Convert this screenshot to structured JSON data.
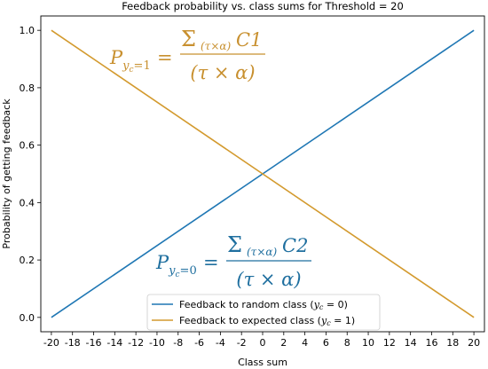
{
  "chart_data": {
    "type": "line",
    "title": "Feedback probability vs. class sums for Threshold = 20",
    "xlabel": "Class sum",
    "ylabel": "Probability of getting feedback",
    "xlim": [
      -21,
      21
    ],
    "ylim": [
      -0.05,
      1.05
    ],
    "x_ticks": [
      -20,
      -18,
      -16,
      -14,
      -12,
      -10,
      -8,
      -6,
      -4,
      -2,
      0,
      2,
      4,
      6,
      8,
      10,
      12,
      14,
      16,
      18,
      20
    ],
    "x_tick_labels": [
      "-20",
      "-18",
      "-16",
      "-14",
      "-12",
      "-10",
      "-8",
      "-6",
      "-4",
      "-2",
      "0",
      "2",
      "4",
      "6",
      "8",
      "10",
      "12",
      "14",
      "16",
      "18",
      "20"
    ],
    "y_ticks": [
      0.0,
      0.2,
      0.4,
      0.6,
      0.8,
      1.0
    ],
    "y_tick_labels": [
      "0.0",
      "0.2",
      "0.4",
      "0.6",
      "0.8",
      "1.0"
    ],
    "grid": false,
    "legend_position": "lower-right",
    "series": [
      {
        "name_prefix": "Feedback to random class (",
        "name_math": "y",
        "name_sub": "c",
        "name_suffix": " = 0)",
        "color": "#1f77b4",
        "x": [
          -20,
          20
        ],
        "y": [
          0.0,
          1.0
        ]
      },
      {
        "name_prefix": "Feedback to expected class (",
        "name_math": "y",
        "name_sub": "c",
        "name_suffix": " = 1)",
        "color": "#d39a2e",
        "x": [
          -20,
          20
        ],
        "y": [
          1.0,
          0.0
        ]
      }
    ],
    "annotations": [
      {
        "name": "equation-expected",
        "color": "#c8902f",
        "lhs_var": "P",
        "lhs_sub_var": "y",
        "lhs_sub_sub": "c",
        "lhs_sub_rest": "=1",
        "equals": "=",
        "numerator_sum": "Σ",
        "numerator_sub": "(τ×α)",
        "numerator_var": "C1",
        "denominator": "(τ × α)"
      },
      {
        "name": "equation-random",
        "color": "#1f6f9f",
        "lhs_var": "P",
        "lhs_sub_var": "y",
        "lhs_sub_sub": "c",
        "lhs_sub_rest": "=0",
        "equals": "=",
        "numerator_sum": "Σ",
        "numerator_sub": "(τ×α)",
        "numerator_var": "C2",
        "denominator": "(τ × α)"
      }
    ]
  }
}
